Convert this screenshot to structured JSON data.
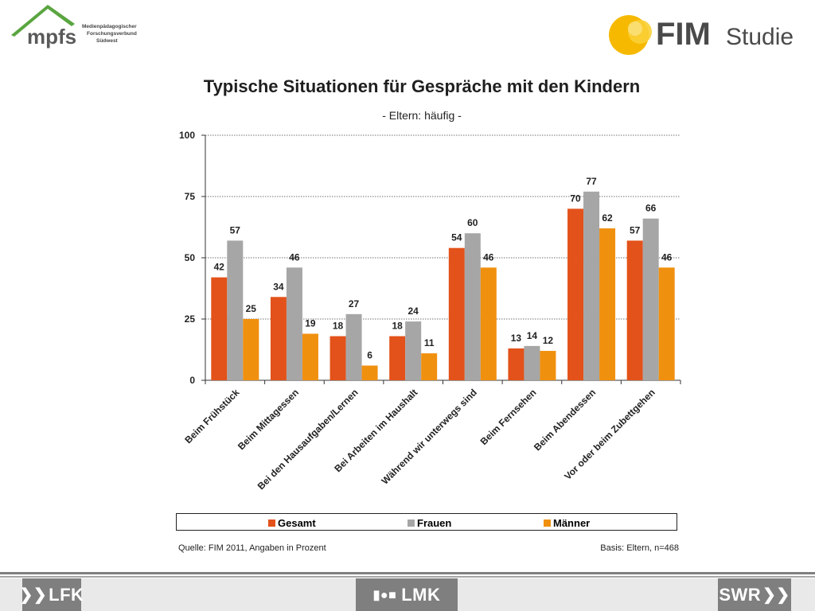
{
  "header": {
    "left_logo": {
      "name": "mpfs",
      "lines": [
        "Medienpädagogischer",
        "Forschungsverbund",
        "Südwest"
      ],
      "color_green": "#5aa540",
      "color_gray": "#5a5a5a"
    },
    "right_logo": {
      "name": "FIM",
      "suffix": "Studie",
      "color_yellow": "#f7b900",
      "color_text": "#4a4a4a"
    }
  },
  "chart_data": {
    "type": "bar",
    "title": "Typische Situationen für Gespräche mit den Kindern",
    "subtitle": "- Eltern: häufig -",
    "categories": [
      "Beim Frühstück",
      "Beim Mittagessen",
      "Bei den Hausaufgaben/Lernen",
      "Bei Arbeiten im Haushalt",
      "Während wir unterwegs sind",
      "Beim Fernsehen",
      "Beim Abendessen",
      "Vor oder beim Zubettgehen"
    ],
    "series": [
      {
        "name": "Gesamt",
        "color": "#e2521a",
        "values": [
          42,
          34,
          18,
          18,
          54,
          13,
          70,
          57
        ]
      },
      {
        "name": "Frauen",
        "color": "#a6a6a6",
        "values": [
          57,
          46,
          27,
          24,
          60,
          14,
          77,
          66
        ]
      },
      {
        "name": "Männer",
        "color": "#f0900f",
        "values": [
          25,
          19,
          6,
          11,
          46,
          12,
          62,
          46
        ]
      }
    ],
    "ylim": [
      0,
      100
    ],
    "yticks": [
      0,
      25,
      50,
      75,
      100
    ],
    "grid": true,
    "legend": "bottom"
  },
  "notes": {
    "source": "Quelle: FIM 2011,  Angaben in Prozent",
    "basis": "Basis: Eltern, n=468"
  },
  "footer": {
    "logos": [
      "LFK",
      "LMK",
      "SWR"
    ],
    "logo_bg": "#7f7f7f"
  }
}
